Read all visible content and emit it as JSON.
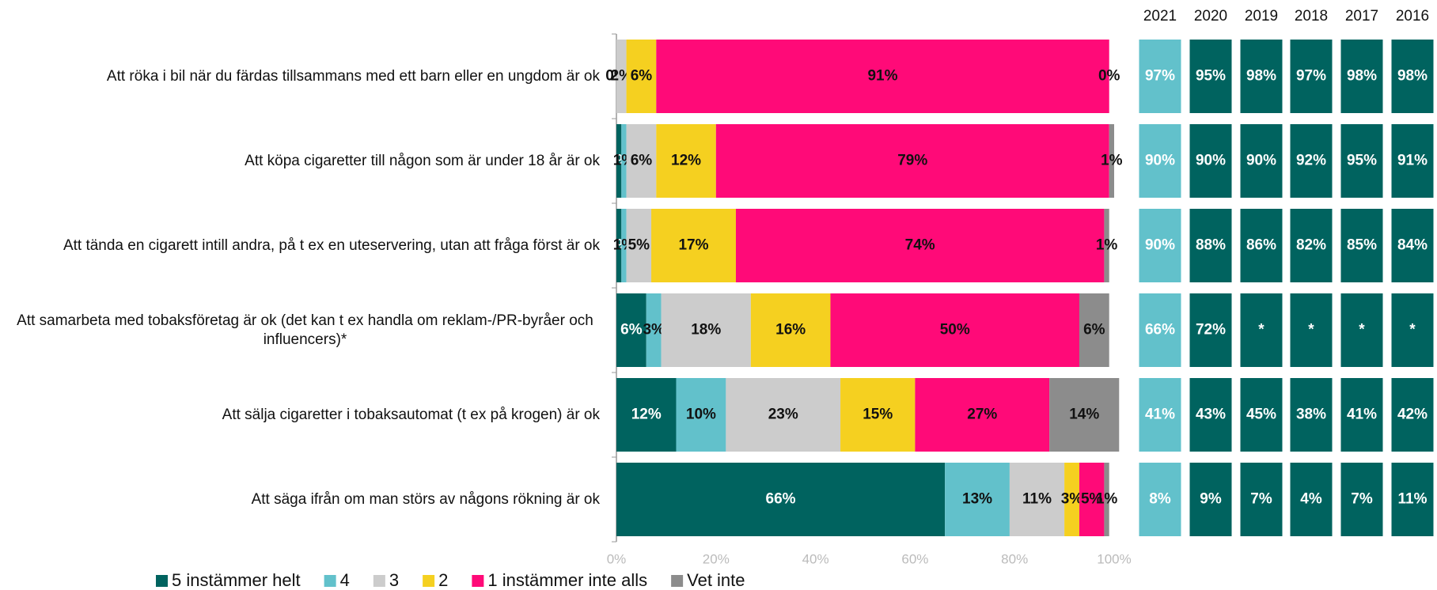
{
  "chart_data": {
    "type": "stacked_bar_horizontal",
    "categories": [
      "Att röka i bil när du färdas tillsammans med ett barn eller en ungdom är ok",
      "Att köpa cigaretter till någon som är under 18 år är ok",
      "Att tända en cigarett intill andra, på t ex en uteservering, utan att fråga först är ok",
      "Att samarbeta med tobaksföretag är ok (det kan t ex handla om reklam-/PR-byråer och influencers)*",
      "Att sälja cigaretter i tobaksautomat (t ex på krogen) är ok",
      "Att säga ifrån om man störs av någons rökning är ok"
    ],
    "series": [
      {
        "name": "5 instämmer helt",
        "color": "#00635f",
        "label_color": "#ffffff",
        "values": [
          0,
          1,
          1,
          6,
          12,
          66
        ],
        "value_labels": [
          "0%",
          "1%",
          "1%",
          "6%",
          "12%",
          "66%"
        ]
      },
      {
        "name": "4",
        "color": "#62c1cb",
        "label_color": "#111111",
        "values": [
          0,
          1,
          1,
          3,
          10,
          13
        ],
        "value_labels": [
          "0%",
          "1%",
          "1%",
          "3%",
          "10%",
          "13%"
        ]
      },
      {
        "name": "3",
        "color": "#cccccc",
        "label_color": "#111111",
        "values": [
          2,
          6,
          5,
          18,
          23,
          11
        ],
        "value_labels": [
          "2%",
          "6%",
          "5%",
          "18%",
          "23%",
          "11%"
        ]
      },
      {
        "name": "2",
        "color": "#f5d020",
        "label_color": "#111111",
        "values": [
          6,
          12,
          17,
          16,
          15,
          3
        ],
        "value_labels": [
          "6%",
          "12%",
          "17%",
          "16%",
          "15%",
          "3%"
        ]
      },
      {
        "name": "1 instämmer inte alls",
        "color": "#ff0a78",
        "label_color": "#111111",
        "values": [
          91,
          79,
          74,
          50,
          27,
          5
        ],
        "value_labels": [
          "91%",
          "79%",
          "74%",
          "50%",
          "27%",
          "5%"
        ]
      },
      {
        "name": "Vet inte",
        "color": "#8c8c8c",
        "label_color": "#111111",
        "values": [
          0,
          1,
          1,
          6,
          14,
          1
        ],
        "value_labels": [
          "0%",
          "1%",
          "1%",
          "6%",
          "14%",
          "1%"
        ]
      }
    ],
    "xlim": [
      0,
      100
    ],
    "xticks": [
      {
        "value": 0,
        "label": "0%"
      },
      {
        "value": 20,
        "label": "20%"
      },
      {
        "value": 40,
        "label": "40%"
      },
      {
        "value": 60,
        "label": "60%"
      },
      {
        "value": 80,
        "label": "80%"
      },
      {
        "value": 100,
        "label": "100%"
      }
    ],
    "legend": "bottom",
    "year_table": {
      "columns": [
        "2021",
        "2020",
        "2019",
        "2018",
        "2017",
        "2016"
      ],
      "column_colors": [
        "#62c1cb",
        "#00635f",
        "#00635f",
        "#00635f",
        "#00635f",
        "#00635f"
      ],
      "rows": [
        [
          "97%",
          "95%",
          "98%",
          "97%",
          "98%",
          "98%"
        ],
        [
          "90%",
          "90%",
          "90%",
          "92%",
          "95%",
          "91%"
        ],
        [
          "90%",
          "88%",
          "86%",
          "82%",
          "85%",
          "84%"
        ],
        [
          "66%",
          "72%",
          "*",
          "*",
          "*",
          "*"
        ],
        [
          "41%",
          "43%",
          "45%",
          "38%",
          "41%",
          "42%"
        ],
        [
          "8%",
          "9%",
          "7%",
          "4%",
          "7%",
          "11%"
        ]
      ]
    }
  }
}
